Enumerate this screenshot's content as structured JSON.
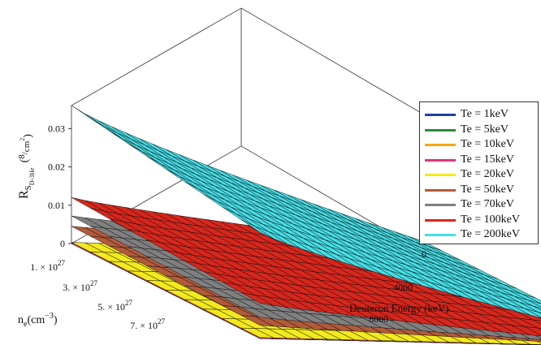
{
  "chart_data": {
    "type": "surface3d",
    "zlabel_main": "R",
    "zlabel_sub": "S",
    "zlabel_subsub": "D-3He",
    "zlabel_unit_num": "8",
    "zlabel_unit_den": "cm",
    "zlabel_unit_den_exp": "2",
    "xlabel": "Deuteron Energy (keV)",
    "ylabel_main": "n",
    "ylabel_sub": "e",
    "ylabel_unit": "(cm",
    "ylabel_unit_exp": "−3",
    "ylabel_unit_close": ")",
    "x_ticks": [
      "0",
      "4000",
      "8000"
    ],
    "y_ticks": [
      {
        "mant": "1. × 10",
        "exp": "27"
      },
      {
        "mant": "3. × 10",
        "exp": "27"
      },
      {
        "mant": "5. × 10",
        "exp": "27"
      },
      {
        "mant": "7. × 10",
        "exp": "27"
      }
    ],
    "z_ticks": [
      "0",
      "0.01",
      "0.02",
      "0.03"
    ],
    "zlim": [
      0,
      0.036
    ],
    "x_range_keV": [
      0,
      10000
    ],
    "series": [
      {
        "name": "Te = 1keV",
        "color": "#1f3fa0",
        "front_z": 0.0,
        "back_z": 0.0
      },
      {
        "name": "Te = 5keV",
        "color": "#2e8b3a",
        "front_z": 0.0,
        "back_z": 0.0
      },
      {
        "name": "Te = 10keV",
        "color": "#f5a800",
        "front_z": 0.0,
        "back_z": 0.0
      },
      {
        "name": "Te = 15keV",
        "color": "#e0357a",
        "front_z": 0.0,
        "back_z": 0.0
      },
      {
        "name": "Te = 20keV",
        "color": "#f2ea1c",
        "front_z": 0.0003,
        "back_z": 0.0001
      },
      {
        "name": "Te = 50keV",
        "color": "#b35a3a",
        "front_z": 0.0045,
        "back_z": 0.0004
      },
      {
        "name": "Te = 70keV",
        "color": "#808080",
        "front_z": 0.0072,
        "back_z": 0.0006
      },
      {
        "name": "Te = 100keV",
        "color": "#d9261c",
        "front_z": 0.012,
        "back_z": 0.0009
      },
      {
        "name": "Te = 200keV",
        "color": "#45e0e8",
        "front_z": 0.036,
        "back_z": 0.0028
      }
    ]
  }
}
